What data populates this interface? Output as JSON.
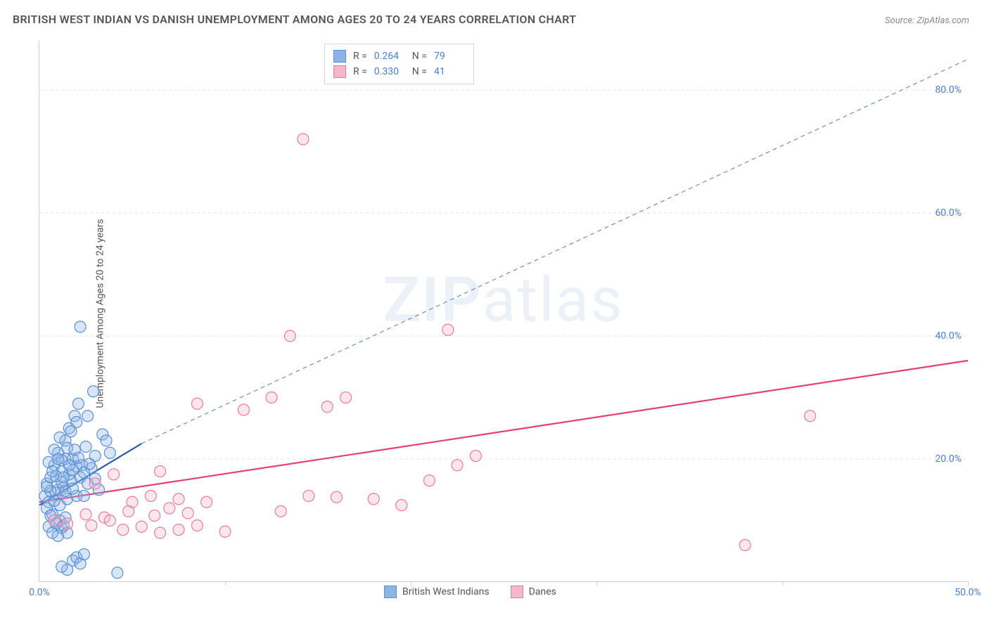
{
  "title": "BRITISH WEST INDIAN VS DANISH UNEMPLOYMENT AMONG AGES 20 TO 24 YEARS CORRELATION CHART",
  "source": "Source: ZipAtlas.com",
  "y_axis_label": "Unemployment Among Ages 20 to 24 years",
  "watermark_a": "ZIP",
  "watermark_b": "atlas",
  "chart": {
    "type": "scatter",
    "background_color": "#ffffff",
    "grid_color": "#e0e0e0",
    "axis_color": "#cccccc",
    "tick_color": "#4a7ec9",
    "xlim": [
      0,
      50
    ],
    "ylim": [
      0,
      88
    ],
    "x_ticks": [
      0,
      10,
      20,
      30,
      40,
      50
    ],
    "x_tick_labels": [
      "0.0%",
      "",
      "",
      "",
      "",
      "50.0%"
    ],
    "y_ticks": [
      20,
      40,
      60,
      80
    ],
    "y_tick_labels": [
      "20.0%",
      "40.0%",
      "60.0%",
      "80.0%"
    ],
    "marker_radius": 8,
    "marker_fill_opacity": 0.35,
    "marker_stroke_width": 1.2,
    "title_fontsize": 16,
    "label_fontsize": 14
  },
  "series": [
    {
      "name": "British West Indians",
      "color_fill": "#8db4e3",
      "color_stroke": "#5b8fd6",
      "trend": {
        "x1": 0,
        "y1": 12.5,
        "x2": 5.5,
        "y2": 22.5,
        "dash_x2": 50,
        "dash_y2": 85,
        "color": "#2e5da8",
        "width": 2.2
      },
      "stats": {
        "R": "0.264",
        "N": "79"
      },
      "points": [
        [
          0.3,
          14
        ],
        [
          0.4,
          16
        ],
        [
          0.5,
          13
        ],
        [
          0.6,
          17
        ],
        [
          0.7,
          11
        ],
        [
          0.8,
          19
        ],
        [
          0.9,
          14.5
        ],
        [
          1.0,
          21
        ],
        [
          1.1,
          12.5
        ],
        [
          1.2,
          18
        ],
        [
          1.3,
          15.5
        ],
        [
          1.4,
          23
        ],
        [
          1.5,
          13.5
        ],
        [
          1.6,
          25
        ],
        [
          1.7,
          16.5
        ],
        [
          1.8,
          20
        ],
        [
          1.9,
          27
        ],
        [
          2.0,
          14
        ],
        [
          2.1,
          29
        ],
        [
          2.2,
          17
        ],
        [
          0.5,
          9
        ],
        [
          0.7,
          8
        ],
        [
          0.9,
          9.5
        ],
        [
          1.0,
          7.5
        ],
        [
          1.1,
          10
        ],
        [
          1.2,
          8.8
        ],
        [
          1.3,
          9.2
        ],
        [
          1.4,
          10.5
        ],
        [
          1.5,
          8
        ],
        [
          2.3,
          19
        ],
        [
          2.5,
          22
        ],
        [
          2.6,
          16
        ],
        [
          2.8,
          18.5
        ],
        [
          3.0,
          20.5
        ],
        [
          3.2,
          15
        ],
        [
          3.4,
          24
        ],
        [
          1.5,
          2
        ],
        [
          1.8,
          3.5
        ],
        [
          2.0,
          4
        ],
        [
          2.2,
          3
        ],
        [
          2.4,
          4.5
        ],
        [
          1.2,
          2.5
        ],
        [
          2.4,
          14
        ],
        [
          2.6,
          27
        ],
        [
          2.9,
          31
        ],
        [
          3.6,
          23
        ],
        [
          3.8,
          21
        ],
        [
          2.2,
          41.5
        ],
        [
          0.4,
          12
        ],
        [
          0.6,
          10.8
        ],
        [
          0.8,
          13.2
        ],
        [
          1.0,
          15
        ],
        [
          1.2,
          16.2
        ],
        [
          1.4,
          14.8
        ],
        [
          1.6,
          17.5
        ],
        [
          1.8,
          15.2
        ],
        [
          2.0,
          18.8
        ],
        [
          0.5,
          19.5
        ],
        [
          0.8,
          21.5
        ],
        [
          1.1,
          23.5
        ],
        [
          1.4,
          20
        ],
        [
          1.7,
          24.5
        ],
        [
          2.0,
          26
        ],
        [
          0.6,
          14.8
        ],
        [
          0.9,
          17.2
        ],
        [
          1.2,
          19.8
        ],
        [
          1.5,
          21.8
        ],
        [
          1.8,
          18.2
        ],
        [
          2.1,
          20.2
        ],
        [
          2.4,
          17.8
        ],
        [
          2.7,
          19.2
        ],
        [
          3.0,
          16.8
        ],
        [
          0.4,
          15.5
        ],
        [
          0.7,
          18
        ],
        [
          1.0,
          20
        ],
        [
          1.3,
          17
        ],
        [
          1.6,
          19
        ],
        [
          1.9,
          21.5
        ],
        [
          4.2,
          1.5
        ]
      ]
    },
    {
      "name": "Danes",
      "color_fill": "#f4b8c8",
      "color_stroke": "#e87ca0",
      "trend": {
        "x1": 0,
        "y1": 13,
        "x2": 50,
        "y2": 36,
        "dash_x2": 50,
        "dash_y2": 36,
        "color": "#e63e78",
        "width": 2.2
      },
      "stats": {
        "R": "0.330",
        "N": "41"
      },
      "points": [
        [
          0.8,
          10
        ],
        [
          1.5,
          9.5
        ],
        [
          2.5,
          11
        ],
        [
          3.5,
          10.5
        ],
        [
          4.5,
          8.5
        ],
        [
          5.5,
          9
        ],
        [
          6.5,
          8
        ],
        [
          7.5,
          8.5
        ],
        [
          8.5,
          9.2
        ],
        [
          5.0,
          13
        ],
        [
          6.0,
          14
        ],
        [
          7.5,
          13.5
        ],
        [
          3.0,
          16
        ],
        [
          4.0,
          17.5
        ],
        [
          9.0,
          13
        ],
        [
          10.0,
          8.2
        ],
        [
          11.0,
          28
        ],
        [
          12.5,
          30
        ],
        [
          13.5,
          40
        ],
        [
          14.5,
          14
        ],
        [
          15.5,
          28.5
        ],
        [
          16.5,
          30
        ],
        [
          18.0,
          13.5
        ],
        [
          19.5,
          12.5
        ],
        [
          21.0,
          16.5
        ],
        [
          22.5,
          19
        ],
        [
          23.5,
          20.5
        ],
        [
          22.0,
          41
        ],
        [
          14.2,
          72
        ],
        [
          38.0,
          6
        ],
        [
          41.5,
          27
        ],
        [
          2.8,
          9.2
        ],
        [
          3.8,
          10
        ],
        [
          4.8,
          11.5
        ],
        [
          6.2,
          10.8
        ],
        [
          7.0,
          12
        ],
        [
          8.0,
          11.2
        ],
        [
          16.0,
          13.8
        ],
        [
          6.5,
          18
        ],
        [
          8.5,
          29
        ],
        [
          13.0,
          11.5
        ]
      ]
    }
  ],
  "legend": {
    "items": [
      "British West Indians",
      "Danes"
    ]
  },
  "stats_labels": {
    "R": "R =",
    "N": "N ="
  }
}
